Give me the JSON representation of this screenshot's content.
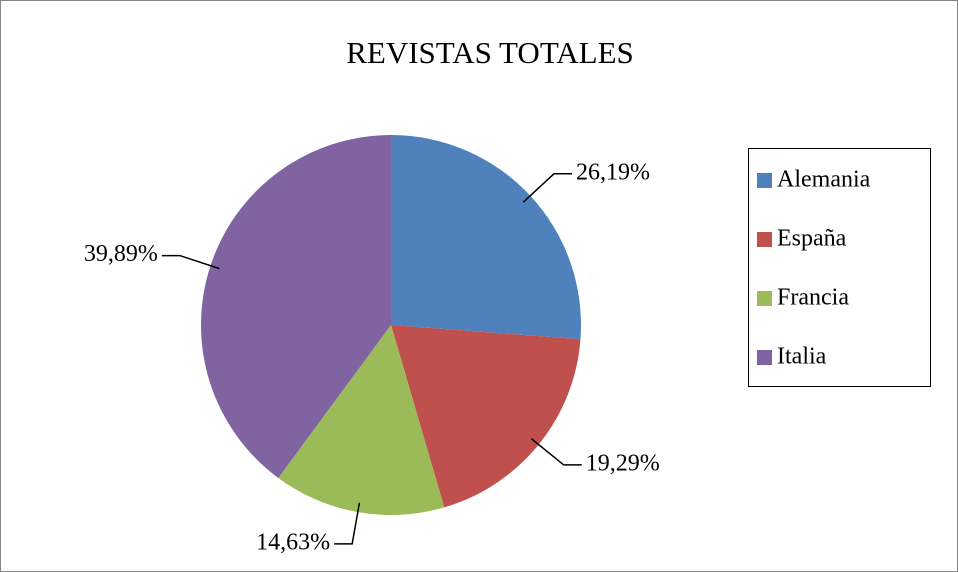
{
  "chart_data": {
    "type": "pie",
    "title": "REVISTAS TOTALES",
    "categories": [
      "Alemania",
      "España",
      "Francia",
      "Italia"
    ],
    "values": [
      26.19,
      19.29,
      14.63,
      39.89
    ],
    "value_labels": [
      "26,19%",
      "19,29%",
      "14,63%",
      "39,89%"
    ],
    "colors": [
      "#4f81bd",
      "#c0504d",
      "#9bbb59",
      "#8064a2"
    ],
    "legend": "right"
  }
}
